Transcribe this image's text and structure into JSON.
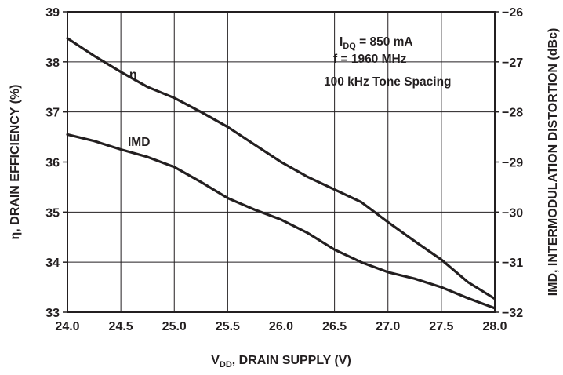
{
  "chart_data": {
    "type": "line",
    "title": "",
    "x": [
      24.0,
      24.25,
      24.5,
      24.75,
      25.0,
      25.25,
      25.5,
      25.75,
      26.0,
      26.25,
      26.5,
      26.75,
      27.0,
      27.25,
      27.5,
      27.75,
      28.0
    ],
    "xlim": [
      24.0,
      28.0
    ],
    "xticks": [
      "24.0",
      "24.5",
      "25.0",
      "25.5",
      "26.0",
      "26.5",
      "27.0",
      "27.5",
      "28.0"
    ],
    "xlabel": {
      "main": "V",
      "sub": "DD",
      "rest": ", DRAIN SUPPLY (V)"
    },
    "ylabel_left": "η, DRAIN EFFICIENCY (%)",
    "ylim_left": [
      33,
      39
    ],
    "yticks_left": [
      "33",
      "34",
      "35",
      "36",
      "37",
      "38",
      "39"
    ],
    "ylabel_right": "IMD, INTERMODULATION DISTORTION (dBc)",
    "ylim_right": [
      -32,
      -26
    ],
    "yticks_right": [
      "−32",
      "−31",
      "−30",
      "−29",
      "−28",
      "−27",
      "−26"
    ],
    "grid": true,
    "series": [
      {
        "name": "η",
        "axis": "left",
        "values": [
          38.47,
          38.12,
          37.8,
          37.5,
          37.28,
          37.0,
          36.7,
          36.35,
          36.0,
          35.7,
          35.45,
          35.2,
          34.8,
          34.42,
          34.05,
          33.6,
          33.27
        ]
      },
      {
        "name": "IMD",
        "axis": "right",
        "values": [
          -28.45,
          -28.58,
          -28.75,
          -28.9,
          -29.1,
          -29.4,
          -29.72,
          -29.95,
          -30.15,
          -30.42,
          -30.75,
          -31.0,
          -31.2,
          -31.33,
          -31.5,
          -31.72,
          -31.92
        ]
      }
    ],
    "annotations": [
      {
        "main": "I",
        "sub": "DQ",
        "rest": " = 850 mA"
      },
      {
        "main": "f = 1960 MHz"
      },
      {
        "main": "100 kHz Tone Spacing"
      }
    ]
  }
}
